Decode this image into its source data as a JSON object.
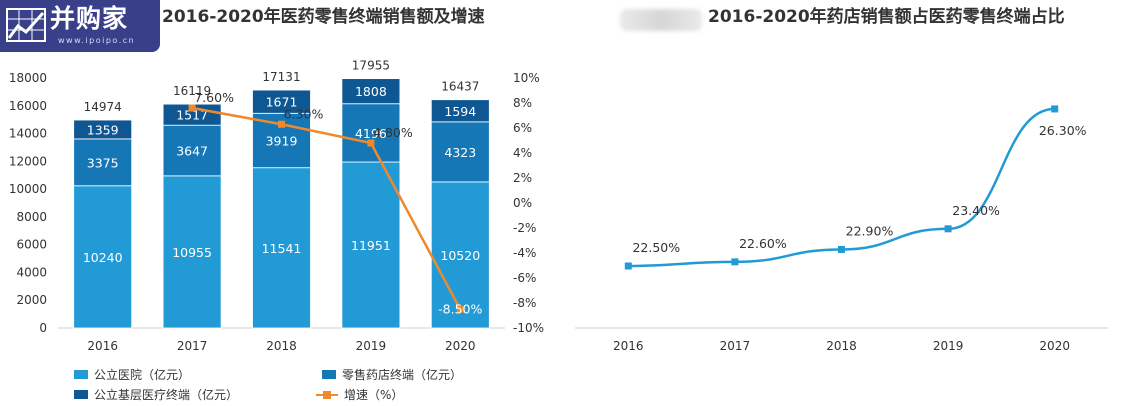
{
  "logo": {
    "text": "并购家",
    "sub": "www.ipoipo.cn"
  },
  "chart_data": [
    {
      "type": "bar",
      "stacked": true,
      "title": "2016-2020年医药零售终端销售额及增速",
      "categories": [
        "2016",
        "2017",
        "2018",
        "2019",
        "2020"
      ],
      "series": [
        {
          "name": "公立医院（亿元）",
          "values": [
            10240,
            10955,
            11541,
            11951,
            10520
          ],
          "color": "#229ad6"
        },
        {
          "name": "零售药店终端（亿元）",
          "values": [
            3375,
            3647,
            3919,
            4196,
            4323
          ],
          "color": "#1677b7"
        },
        {
          "name": "公立基层医疗终端（亿元）",
          "values": [
            1359,
            1517,
            1671,
            1808,
            1594
          ],
          "color": "#0f5792"
        }
      ],
      "totals": [
        14974,
        16119,
        17131,
        17955,
        16437
      ],
      "line_series": {
        "name": "增速（%）",
        "x": [
          "2017",
          "2018",
          "2019",
          "2020"
        ],
        "values": [
          7.6,
          6.3,
          4.8,
          -8.5
        ],
        "labels": [
          "7.60%",
          "6.30%",
          "4.80%",
          "-8.50%"
        ],
        "color": "#f0892b"
      },
      "y_left": {
        "ylim": [
          0,
          18000
        ],
        "ticks": [
          0,
          2000,
          4000,
          6000,
          8000,
          10000,
          12000,
          14000,
          16000,
          18000
        ]
      },
      "y_right": {
        "ylim": [
          -10,
          10
        ],
        "ticks": [
          -10,
          -8,
          -6,
          -4,
          -2,
          0,
          2,
          4,
          6,
          8,
          10
        ],
        "tick_labels": [
          "-10%",
          "-8%",
          "-6%",
          "-4%",
          "-2%",
          "0%",
          "2%",
          "4%",
          "6%",
          "8%",
          "10%"
        ]
      },
      "grid": false,
      "legend_position": "bottom"
    },
    {
      "type": "line",
      "title": "2016-2020年药店销售额占医药零售终端占比",
      "x": [
        "2016",
        "2017",
        "2018",
        "2019",
        "2020"
      ],
      "series": [
        {
          "values": [
            22.5,
            22.6,
            22.9,
            23.4,
            26.3
          ],
          "labels": [
            "22.50%",
            "22.60%",
            "22.90%",
            "23.40%",
            "26.30%"
          ],
          "color": "#229ad6"
        }
      ],
      "y_axis_visible": false,
      "grid": false
    }
  ]
}
